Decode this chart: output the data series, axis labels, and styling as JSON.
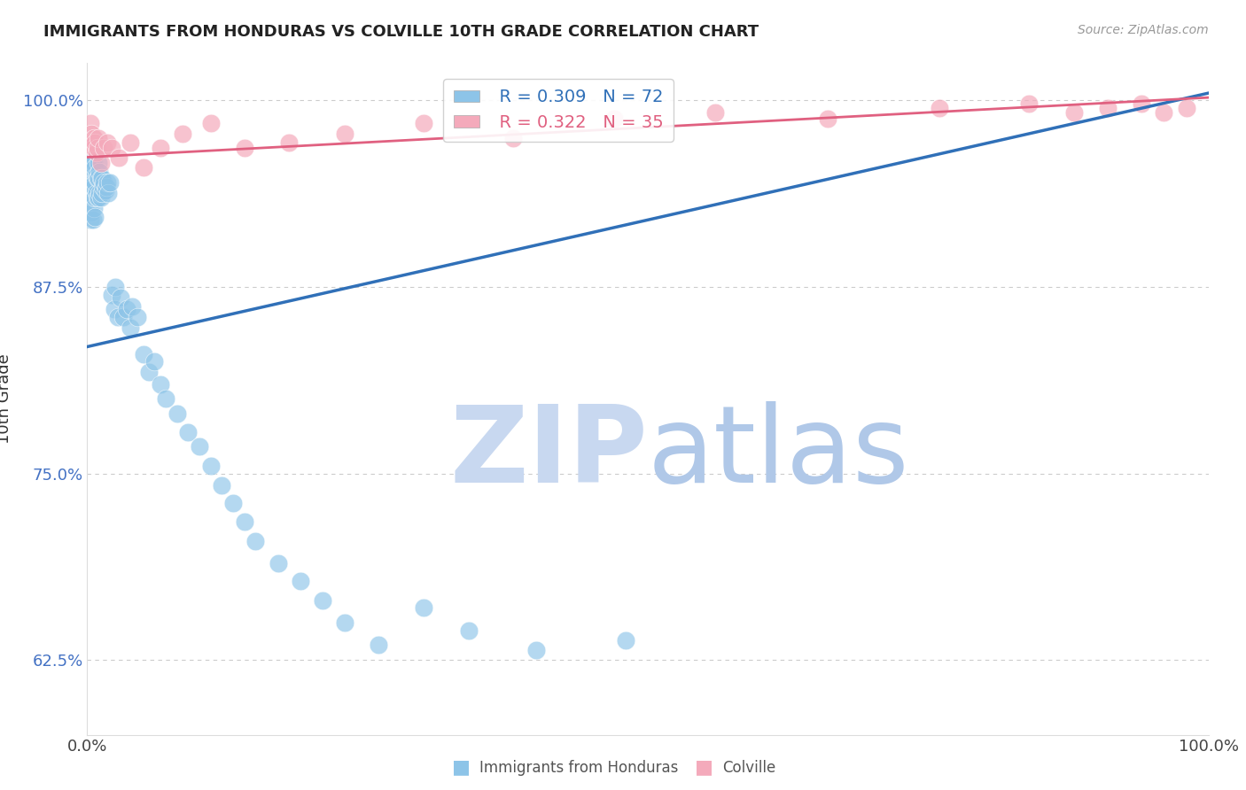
{
  "title": "IMMIGRANTS FROM HONDURAS VS COLVILLE 10TH GRADE CORRELATION CHART",
  "source_text": "Source: ZipAtlas.com",
  "ylabel": "10th Grade",
  "xlim": [
    0.0,
    1.0
  ],
  "ylim": [
    0.575,
    1.025
  ],
  "yticks": [
    0.625,
    0.75,
    0.875,
    1.0
  ],
  "ytick_labels": [
    "62.5%",
    "75.0%",
    "87.5%",
    "100.0%"
  ],
  "xticks": [
    0.0,
    1.0
  ],
  "xtick_labels": [
    "0.0%",
    "100.0%"
  ],
  "legend_labels": [
    "Immigrants from Honduras",
    "Colville"
  ],
  "R_blue": 0.309,
  "N_blue": 72,
  "R_pink": 0.322,
  "N_pink": 35,
  "blue_color": "#8DC4E8",
  "pink_color": "#F4AABB",
  "blue_line_color": "#3070B8",
  "pink_line_color": "#E06080",
  "watermark_zip_color": "#C8D8F0",
  "watermark_atlas_color": "#B0C8E8",
  "blue_x": [
    0.002,
    0.002,
    0.003,
    0.003,
    0.003,
    0.003,
    0.004,
    0.004,
    0.004,
    0.005,
    0.005,
    0.005,
    0.005,
    0.006,
    0.006,
    0.006,
    0.007,
    0.007,
    0.007,
    0.007,
    0.008,
    0.008,
    0.009,
    0.009,
    0.01,
    0.01,
    0.01,
    0.011,
    0.011,
    0.012,
    0.012,
    0.013,
    0.013,
    0.014,
    0.015,
    0.016,
    0.017,
    0.018,
    0.019,
    0.02,
    0.022,
    0.024,
    0.025,
    0.027,
    0.03,
    0.032,
    0.035,
    0.038,
    0.04,
    0.045,
    0.05,
    0.055,
    0.06,
    0.065,
    0.07,
    0.08,
    0.09,
    0.1,
    0.11,
    0.12,
    0.13,
    0.14,
    0.15,
    0.17,
    0.19,
    0.21,
    0.23,
    0.26,
    0.3,
    0.34,
    0.4,
    0.48
  ],
  "blue_y": [
    0.955,
    0.935,
    0.96,
    0.945,
    0.93,
    0.92,
    0.95,
    0.94,
    0.925,
    0.96,
    0.945,
    0.935,
    0.92,
    0.958,
    0.942,
    0.928,
    0.955,
    0.945,
    0.935,
    0.922,
    0.95,
    0.938,
    0.948,
    0.935,
    0.958,
    0.948,
    0.935,
    0.952,
    0.938,
    0.948,
    0.935,
    0.948,
    0.938,
    0.942,
    0.945,
    0.94,
    0.942,
    0.945,
    0.938,
    0.945,
    0.87,
    0.86,
    0.875,
    0.855,
    0.868,
    0.855,
    0.86,
    0.848,
    0.862,
    0.855,
    0.83,
    0.818,
    0.825,
    0.81,
    0.8,
    0.79,
    0.778,
    0.768,
    0.755,
    0.742,
    0.73,
    0.718,
    0.705,
    0.69,
    0.678,
    0.665,
    0.65,
    0.635,
    0.66,
    0.645,
    0.632,
    0.638
  ],
  "pink_x": [
    0.003,
    0.004,
    0.004,
    0.005,
    0.006,
    0.006,
    0.007,
    0.008,
    0.009,
    0.01,
    0.012,
    0.015,
    0.018,
    0.022,
    0.028,
    0.038,
    0.05,
    0.065,
    0.085,
    0.11,
    0.14,
    0.18,
    0.23,
    0.3,
    0.38,
    0.47,
    0.56,
    0.66,
    0.76,
    0.84,
    0.88,
    0.91,
    0.94,
    0.96,
    0.98
  ],
  "pink_y": [
    0.985,
    0.978,
    0.972,
    0.968,
    0.975,
    0.968,
    0.972,
    0.965,
    0.968,
    0.975,
    0.958,
    0.968,
    0.972,
    0.968,
    0.962,
    0.972,
    0.955,
    0.968,
    0.978,
    0.985,
    0.968,
    0.972,
    0.978,
    0.985,
    0.975,
    0.988,
    0.992,
    0.988,
    0.995,
    0.998,
    0.992,
    0.995,
    0.998,
    0.992,
    0.995
  ],
  "blue_trend_x": [
    0.0,
    1.0
  ],
  "blue_trend_y": [
    0.835,
    1.005
  ],
  "pink_trend_x": [
    0.0,
    1.0
  ],
  "pink_trend_y": [
    0.962,
    1.002
  ]
}
